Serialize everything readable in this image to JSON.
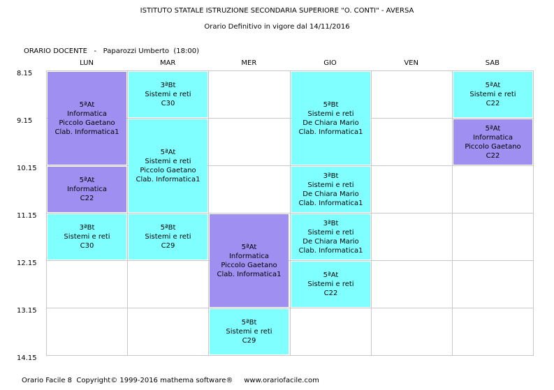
{
  "header": {
    "institute": "ISTITUTO STATALE ISTRUZIONE SECONDARIA SUPERIORE \"O. CONTI\" - AVERSA",
    "subtitle": "Orario Definitivo in vigore dal 14/11/2016"
  },
  "teacher_line": "ORARIO DOCENTE   -   Paparozzi Umberto  (18:00)",
  "days": [
    "LUN",
    "MAR",
    "MER",
    "GIO",
    "VEN",
    "SAB"
  ],
  "hours": [
    "8.15",
    "9.15",
    "10.15",
    "11.15",
    "12.15",
    "13.15",
    "14.15"
  ],
  "colors": {
    "lab": "#7fffff",
    "informatica": "#9e8ff0",
    "grid": "#c8c8c8"
  },
  "lessons": [
    {
      "day": "LUN",
      "start_hour": 1,
      "duration_hours": 2,
      "class": "5ªAt",
      "subject": "Informatica",
      "teacher": "Piccolo Gaetano",
      "room": "Clab. Informatica1",
      "color": "informatica"
    },
    {
      "day": "LUN",
      "start_hour": 3,
      "duration_hours": 1,
      "class": "5ªAt",
      "subject": "Informatica",
      "teacher": "",
      "room": "C22",
      "color": "informatica"
    },
    {
      "day": "LUN",
      "start_hour": 4,
      "duration_hours": 1,
      "class": "3ªBt",
      "subject": "Sistemi e reti",
      "teacher": "",
      "room": "C30",
      "color": "lab"
    },
    {
      "day": "MAR",
      "start_hour": 1,
      "duration_hours": 1,
      "class": "3ªBt",
      "subject": "Sistemi e reti",
      "teacher": "",
      "room": "C30",
      "color": "lab"
    },
    {
      "day": "MAR",
      "start_hour": 2,
      "duration_hours": 2,
      "class": "5ªAt",
      "subject": "Sistemi e reti",
      "teacher": "Piccolo Gaetano",
      "room": "Clab. Informatica1",
      "color": "lab"
    },
    {
      "day": "MAR",
      "start_hour": 4,
      "duration_hours": 1,
      "class": "5ªBt",
      "subject": "Sistemi e reti",
      "teacher": "",
      "room": "C29",
      "color": "lab"
    },
    {
      "day": "MER",
      "start_hour": 4,
      "duration_hours": 2,
      "class": "5ªAt",
      "subject": "Informatica",
      "teacher": "Piccolo Gaetano",
      "room": "Clab. Informatica1",
      "color": "informatica"
    },
    {
      "day": "MER",
      "start_hour": 6,
      "duration_hours": 1,
      "class": "5ªBt",
      "subject": "Sistemi e reti",
      "teacher": "",
      "room": "C29",
      "color": "lab"
    },
    {
      "day": "GIO",
      "start_hour": 1,
      "duration_hours": 2,
      "class": "5ªBt",
      "subject": "Sistemi e reti",
      "teacher": "De Chiara Mario",
      "room": "Clab. Informatica1",
      "color": "lab"
    },
    {
      "day": "GIO",
      "start_hour": 3,
      "duration_hours": 1,
      "class": "3ªBt",
      "subject": "Sistemi e reti",
      "teacher": "De Chiara Mario",
      "room": "Clab. Informatica1",
      "color": "lab"
    },
    {
      "day": "GIO",
      "start_hour": 4,
      "duration_hours": 1,
      "class": "3ªBt",
      "subject": "Sistemi e reti",
      "teacher": "De Chiara Mario",
      "room": "Clab. Informatica1",
      "color": "lab"
    },
    {
      "day": "GIO",
      "start_hour": 5,
      "duration_hours": 1,
      "class": "5ªAt",
      "subject": "Sistemi e reti",
      "teacher": "",
      "room": "C22",
      "color": "lab"
    },
    {
      "day": "SAB",
      "start_hour": 1,
      "duration_hours": 1,
      "class": "5ªAt",
      "subject": "Sistemi e reti",
      "teacher": "",
      "room": "C22",
      "color": "lab"
    },
    {
      "day": "SAB",
      "start_hour": 2,
      "duration_hours": 1,
      "class": "5ªAt",
      "subject": "Informatica",
      "teacher": "Piccolo Gaetano",
      "room": "C22",
      "color": "informatica"
    }
  ],
  "footer": "Orario Facile 8  Copyright© 1999-2016 mathema software®     www.orariofacile.com"
}
